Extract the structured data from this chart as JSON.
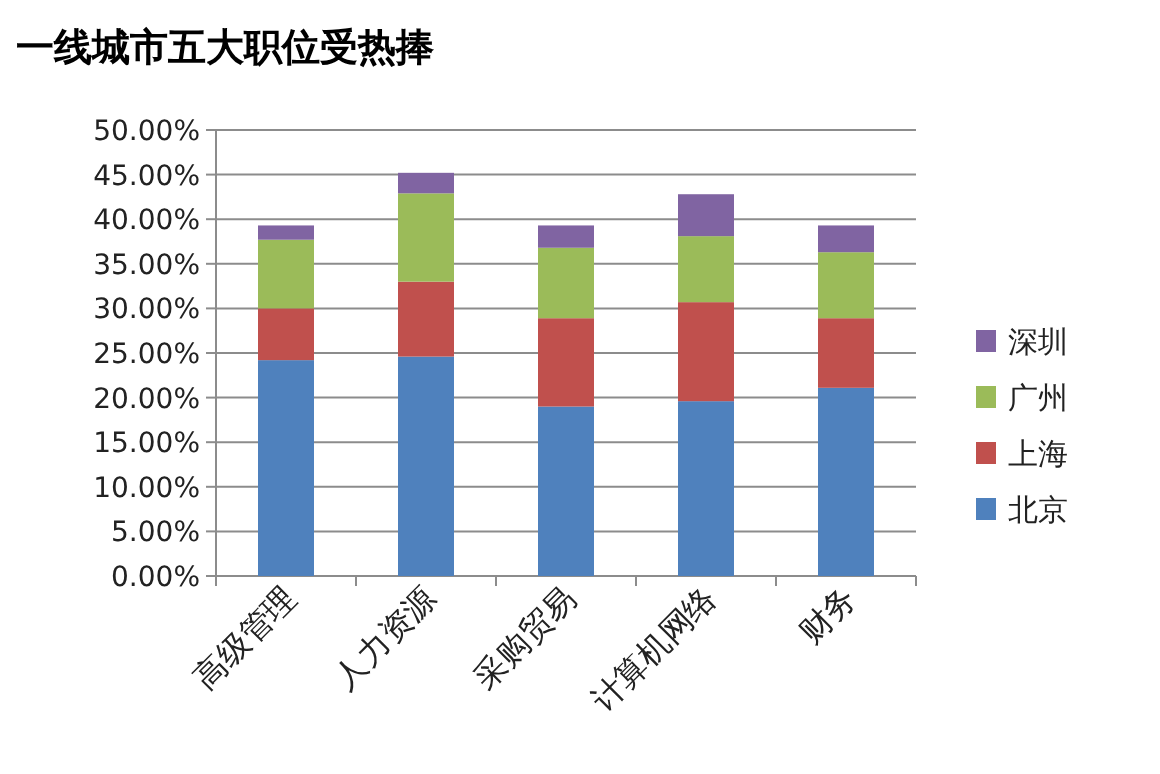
{
  "chart_data": {
    "type": "bar",
    "title": "一线城市五大职位受热捧",
    "categories": [
      "高级管理",
      "人力资源",
      "采购贸易",
      "计算机网络",
      "财务"
    ],
    "stacked": true,
    "series": [
      {
        "name": "北京",
        "color": "#4f81bd",
        "values": [
          24.2,
          24.6,
          19.0,
          19.6,
          21.1
        ]
      },
      {
        "name": "上海",
        "color": "#c0504d",
        "values": [
          5.8,
          8.4,
          9.9,
          11.1,
          7.8
        ]
      },
      {
        "name": "广州",
        "color": "#9bbb59",
        "values": [
          7.7,
          9.9,
          7.9,
          7.4,
          7.4
        ]
      },
      {
        "name": "深圳",
        "color": "#8064a2",
        "values": [
          1.6,
          2.3,
          2.5,
          4.7,
          3.0
        ]
      }
    ],
    "ylim": [
      0,
      50
    ],
    "yticks": [
      {
        "value": 0,
        "label": "0.00%"
      },
      {
        "value": 5,
        "label": "5.00%"
      },
      {
        "value": 10,
        "label": "10.00%"
      },
      {
        "value": 15,
        "label": "15.00%"
      },
      {
        "value": 20,
        "label": "20.00%"
      },
      {
        "value": 25,
        "label": "25.00%"
      },
      {
        "value": 30,
        "label": "30.00%"
      },
      {
        "value": 35,
        "label": "35.00%"
      },
      {
        "value": 40,
        "label": "40.00%"
      },
      {
        "value": 45,
        "label": "45.00%"
      },
      {
        "value": 50,
        "label": "50.00%"
      }
    ],
    "grid": "y",
    "legend": "right"
  }
}
